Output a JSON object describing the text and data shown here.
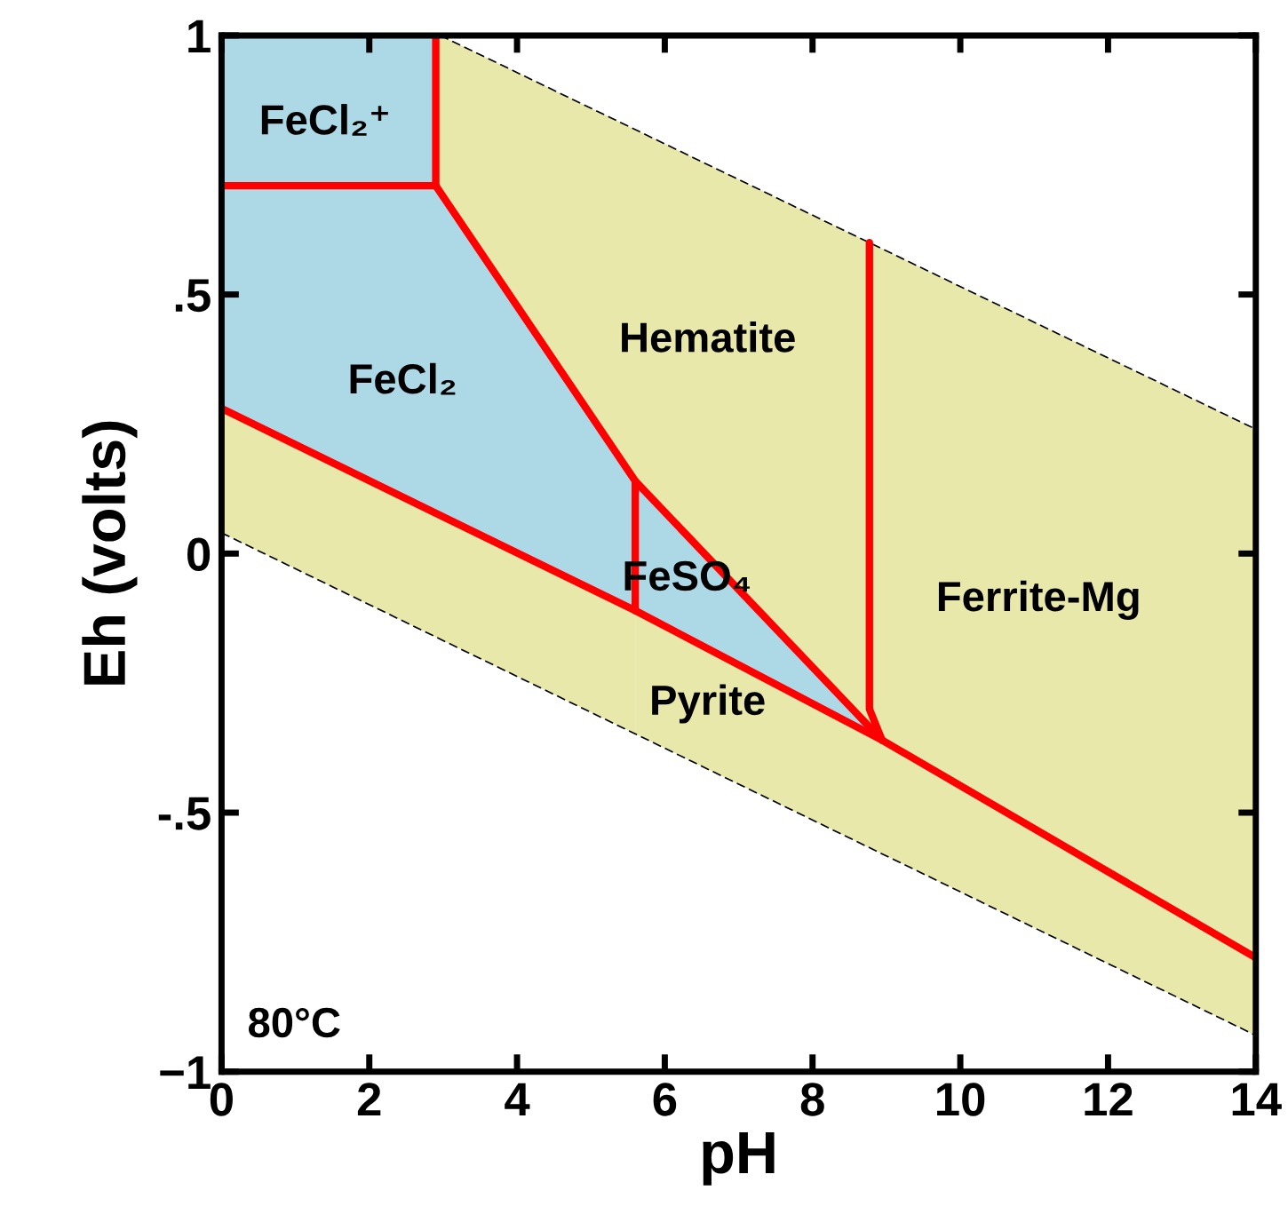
{
  "chart_data": {
    "type": "line",
    "xlabel": "pH",
    "ylabel": "Eh (volts)",
    "xlim": [
      0,
      14
    ],
    "ylim": [
      -1,
      1
    ],
    "xticks": [
      0,
      2,
      4,
      6,
      8,
      10,
      12,
      14
    ],
    "yticks": [
      {
        "value": -1,
        "label": "−1"
      },
      {
        "value": -0.5,
        "label": "-.5"
      },
      0,
      {
        "value": 0.5,
        "label": ".5"
      },
      1
    ],
    "grid": false,
    "legend": false,
    "marker": "none",
    "series": [
      {
        "line_style": "dashed",
        "color": "#000000",
        "x": [
          2.96,
          14
        ],
        "values": [
          1,
          0.24
        ]
      },
      {
        "line_style": "dashed",
        "color": "#000000",
        "x": [
          0,
          14
        ],
        "values": [
          0.04,
          -0.93
        ]
      },
      {
        "line_style": "solid",
        "color": "#ff0000",
        "x": [
          2.9,
          2.9
        ],
        "values": [
          1,
          0.71
        ]
      },
      {
        "line_style": "solid",
        "color": "#ff0000",
        "x": [
          0,
          2.9
        ],
        "values": [
          0.71,
          0.71
        ]
      },
      {
        "line_style": "solid",
        "color": "#ff0000",
        "x": [
          2.9,
          5.6,
          8.94
        ],
        "values": [
          0.71,
          0.14,
          -0.36
        ]
      },
      {
        "line_style": "solid",
        "color": "#ff0000",
        "x": [
          5.6,
          5.6
        ],
        "values": [
          0.14,
          -0.11
        ]
      },
      {
        "line_style": "solid",
        "color": "#ff0000",
        "x": [
          0,
          5.6,
          8.94,
          14
        ],
        "values": [
          0.28,
          -0.11,
          -0.36,
          -0.78
        ]
      },
      {
        "line_style": "solid",
        "color": "#ff0000",
        "x": [
          8.77,
          8.77,
          8.94
        ],
        "values": [
          0.6,
          -0.3,
          -0.36
        ]
      }
    ],
    "annotations": [
      "FeCl₂⁺",
      "FeCl₂",
      "Hematite",
      "FeSO₄",
      "Pyrite",
      "Ferrite-Mg",
      "80°C"
    ]
  }
}
